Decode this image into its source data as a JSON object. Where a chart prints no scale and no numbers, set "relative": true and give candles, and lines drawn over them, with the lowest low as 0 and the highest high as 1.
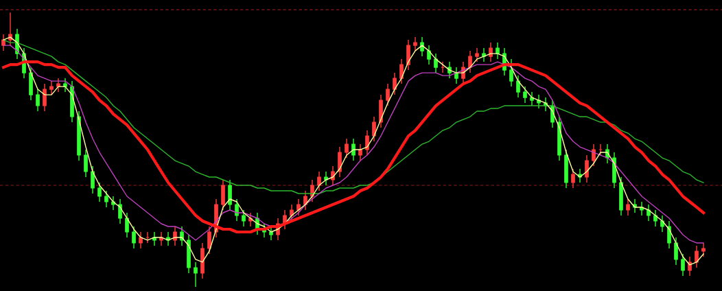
{
  "chart_data": {
    "type": "candlestick",
    "relative": true,
    "categories": [
      null,
      null,
      null,
      null,
      null,
      null,
      null,
      null,
      null,
      null,
      null,
      null,
      null,
      null,
      null,
      null,
      null,
      null,
      null,
      null,
      null,
      null,
      null,
      null,
      null,
      null,
      null,
      null,
      null,
      null,
      null,
      null,
      null,
      null,
      null,
      null,
      null,
      null,
      null,
      null,
      null,
      null,
      null,
      null,
      null,
      null,
      null,
      null,
      null,
      null,
      null,
      null,
      null,
      null,
      null,
      null,
      null,
      null,
      null,
      null,
      null,
      null,
      null,
      null,
      null,
      null,
      null,
      null,
      null,
      null,
      null,
      null,
      null,
      null,
      null,
      null,
      null,
      null,
      null,
      null,
      null,
      null,
      null,
      null,
      null,
      null,
      null,
      null,
      null,
      null,
      null,
      null,
      null,
      null,
      null,
      null,
      null,
      null,
      null,
      null,
      null,
      null,
      null
    ],
    "ohlc": [
      [
        0.88,
        0.92,
        0.86,
        0.9
      ],
      [
        0.9,
        1.0,
        0.88,
        0.92
      ],
      [
        0.92,
        0.94,
        0.83,
        0.85
      ],
      [
        0.85,
        0.87,
        0.76,
        0.78
      ],
      [
        0.78,
        0.8,
        0.68,
        0.7
      ],
      [
        0.7,
        0.72,
        0.64,
        0.66
      ],
      [
        0.66,
        0.74,
        0.64,
        0.72
      ],
      [
        0.72,
        0.75,
        0.7,
        0.73
      ],
      [
        0.73,
        0.76,
        0.71,
        0.74
      ],
      [
        0.74,
        0.76,
        0.71,
        0.73
      ],
      [
        0.73,
        0.75,
        0.6,
        0.62
      ],
      [
        0.62,
        0.64,
        0.46,
        0.48
      ],
      [
        0.48,
        0.5,
        0.4,
        0.42
      ],
      [
        0.42,
        0.44,
        0.34,
        0.36
      ],
      [
        0.36,
        0.38,
        0.31,
        0.33
      ],
      [
        0.33,
        0.35,
        0.29,
        0.31
      ],
      [
        0.31,
        0.33,
        0.28,
        0.3
      ],
      [
        0.3,
        0.32,
        0.23,
        0.25
      ],
      [
        0.25,
        0.27,
        0.18,
        0.2
      ],
      [
        0.2,
        0.22,
        0.14,
        0.16
      ],
      [
        0.16,
        0.2,
        0.14,
        0.18
      ],
      [
        0.18,
        0.2,
        0.16,
        0.18
      ],
      [
        0.18,
        0.2,
        0.15,
        0.17
      ],
      [
        0.17,
        0.2,
        0.15,
        0.18
      ],
      [
        0.18,
        0.2,
        0.15,
        0.17
      ],
      [
        0.17,
        0.22,
        0.15,
        0.2
      ],
      [
        0.2,
        0.22,
        0.15,
        0.17
      ],
      [
        0.17,
        0.19,
        0.05,
        0.07
      ],
      [
        0.07,
        0.09,
        0.0,
        0.05
      ],
      [
        0.05,
        0.16,
        0.03,
        0.14
      ],
      [
        0.14,
        0.22,
        0.12,
        0.2
      ],
      [
        0.2,
        0.32,
        0.18,
        0.3
      ],
      [
        0.3,
        0.39,
        0.28,
        0.37
      ],
      [
        0.37,
        0.39,
        0.28,
        0.3
      ],
      [
        0.3,
        0.32,
        0.24,
        0.26
      ],
      [
        0.26,
        0.28,
        0.22,
        0.24
      ],
      [
        0.24,
        0.27,
        0.22,
        0.25
      ],
      [
        0.25,
        0.27,
        0.19,
        0.21
      ],
      [
        0.21,
        0.23,
        0.18,
        0.2
      ],
      [
        0.2,
        0.22,
        0.17,
        0.19
      ],
      [
        0.19,
        0.25,
        0.17,
        0.23
      ],
      [
        0.23,
        0.28,
        0.21,
        0.26
      ],
      [
        0.26,
        0.3,
        0.24,
        0.28
      ],
      [
        0.28,
        0.32,
        0.26,
        0.3
      ],
      [
        0.3,
        0.35,
        0.28,
        0.33
      ],
      [
        0.33,
        0.39,
        0.31,
        0.37
      ],
      [
        0.37,
        0.42,
        0.35,
        0.4
      ],
      [
        0.4,
        0.42,
        0.37,
        0.39
      ],
      [
        0.39,
        0.44,
        0.37,
        0.42
      ],
      [
        0.42,
        0.51,
        0.4,
        0.49
      ],
      [
        0.49,
        0.54,
        0.47,
        0.52
      ],
      [
        0.52,
        0.54,
        0.46,
        0.48
      ],
      [
        0.48,
        0.52,
        0.46,
        0.5
      ],
      [
        0.5,
        0.57,
        0.48,
        0.55
      ],
      [
        0.55,
        0.62,
        0.53,
        0.6
      ],
      [
        0.6,
        0.7,
        0.58,
        0.68
      ],
      [
        0.68,
        0.74,
        0.66,
        0.72
      ],
      [
        0.72,
        0.78,
        0.7,
        0.76
      ],
      [
        0.76,
        0.83,
        0.74,
        0.81
      ],
      [
        0.81,
        0.9,
        0.79,
        0.88
      ],
      [
        0.88,
        0.91,
        0.86,
        0.89
      ],
      [
        0.89,
        0.91,
        0.84,
        0.86
      ],
      [
        0.86,
        0.88,
        0.81,
        0.83
      ],
      [
        0.83,
        0.85,
        0.78,
        0.8
      ],
      [
        0.8,
        0.82,
        0.78,
        0.8
      ],
      [
        0.8,
        0.82,
        0.76,
        0.78
      ],
      [
        0.78,
        0.8,
        0.74,
        0.76
      ],
      [
        0.76,
        0.82,
        0.74,
        0.8
      ],
      [
        0.8,
        0.86,
        0.78,
        0.84
      ],
      [
        0.84,
        0.87,
        0.82,
        0.85
      ],
      [
        0.85,
        0.87,
        0.82,
        0.84
      ],
      [
        0.84,
        0.89,
        0.82,
        0.87
      ],
      [
        0.87,
        0.89,
        0.83,
        0.85
      ],
      [
        0.85,
        0.87,
        0.77,
        0.79
      ],
      [
        0.79,
        0.83,
        0.73,
        0.75
      ],
      [
        0.75,
        0.77,
        0.69,
        0.71
      ],
      [
        0.71,
        0.73,
        0.67,
        0.69
      ],
      [
        0.69,
        0.71,
        0.66,
        0.68
      ],
      [
        0.68,
        0.7,
        0.65,
        0.67
      ],
      [
        0.67,
        0.69,
        0.64,
        0.66
      ],
      [
        0.66,
        0.68,
        0.58,
        0.6
      ],
      [
        0.6,
        0.62,
        0.46,
        0.48
      ],
      [
        0.48,
        0.5,
        0.36,
        0.38
      ],
      [
        0.38,
        0.43,
        0.36,
        0.41
      ],
      [
        0.41,
        0.43,
        0.38,
        0.4
      ],
      [
        0.4,
        0.48,
        0.38,
        0.46
      ],
      [
        0.46,
        0.52,
        0.44,
        0.5
      ],
      [
        0.5,
        0.52,
        0.48,
        0.5
      ],
      [
        0.5,
        0.52,
        0.45,
        0.47
      ],
      [
        0.47,
        0.49,
        0.36,
        0.38
      ],
      [
        0.38,
        0.4,
        0.26,
        0.28
      ],
      [
        0.28,
        0.32,
        0.26,
        0.3
      ],
      [
        0.3,
        0.32,
        0.27,
        0.29
      ],
      [
        0.29,
        0.31,
        0.26,
        0.28
      ],
      [
        0.28,
        0.3,
        0.24,
        0.26
      ],
      [
        0.26,
        0.28,
        0.22,
        0.24
      ],
      [
        0.24,
        0.26,
        0.2,
        0.22
      ],
      [
        0.22,
        0.24,
        0.14,
        0.16
      ],
      [
        0.16,
        0.18,
        0.08,
        0.1
      ],
      [
        0.1,
        0.12,
        0.04,
        0.06
      ],
      [
        0.06,
        0.11,
        0.04,
        0.09
      ],
      [
        0.09,
        0.15,
        0.07,
        0.13
      ],
      [
        0.13,
        0.16,
        0.11,
        0.14
      ]
    ],
    "colors": [
      "#ff3c3c",
      "#ff3c3c",
      "#33ff33",
      "#33ff33",
      "#33ff33",
      "#33ff33",
      "#ff3c3c",
      "#ff3c3c",
      "#ff3c3c",
      "#33ff33",
      "#33ff33",
      "#33ff33",
      "#33ff33",
      "#33ff33",
      "#33ff33",
      "#33ff33",
      "#33ff33",
      "#33ff33",
      "#33ff33",
      "#33ff33",
      "#ff3c3c",
      "#ff3c3c",
      "#33ff33",
      "#ff3c3c",
      "#33ff33",
      "#ff3c3c",
      "#33ff33",
      "#33ff33",
      "#33ff33",
      "#ff3c3c",
      "#ff3c3c",
      "#ff3c3c",
      "#ff3c3c",
      "#33ff33",
      "#33ff33",
      "#33ff33",
      "#ff3c3c",
      "#33ff33",
      "#33ff33",
      "#33ff33",
      "#ff3c3c",
      "#ff3c3c",
      "#ff3c3c",
      "#ff3c3c",
      "#ff3c3c",
      "#ff3c3c",
      "#ff3c3c",
      "#33ff33",
      "#ff3c3c",
      "#ff3c3c",
      "#ff3c3c",
      "#33ff33",
      "#ff3c3c",
      "#ff3c3c",
      "#ff3c3c",
      "#ff3c3c",
      "#ff3c3c",
      "#ff3c3c",
      "#ff3c3c",
      "#ff3c3c",
      "#ff3c3c",
      "#33ff33",
      "#33ff33",
      "#33ff33",
      "#ff3c3c",
      "#33ff33",
      "#33ff33",
      "#ff3c3c",
      "#ff3c3c",
      "#ff3c3c",
      "#33ff33",
      "#ff3c3c",
      "#33ff33",
      "#33ff33",
      "#33ff33",
      "#33ff33",
      "#33ff33",
      "#33ff33",
      "#33ff33",
      "#33ff33",
      "#33ff33",
      "#33ff33",
      "#33ff33",
      "#ff3c3c",
      "#33ff33",
      "#ff3c3c",
      "#ff3c3c",
      "#ff3c3c",
      "#33ff33",
      "#33ff33",
      "#33ff33",
      "#ff3c3c",
      "#33ff33",
      "#33ff33",
      "#33ff33",
      "#33ff33",
      "#33ff33",
      "#33ff33",
      "#33ff33",
      "#33ff33",
      "#ff3c3c",
      "#ff3c3c",
      "#ff3c3c"
    ],
    "series": [
      {
        "type": "line",
        "color": "#2eb82e",
        "values": [
          0.9,
          0.89,
          0.89,
          0.88,
          0.87,
          0.86,
          0.85,
          0.84,
          0.82,
          0.81,
          0.79,
          0.77,
          0.75,
          0.73,
          0.71,
          0.69,
          0.66,
          0.64,
          0.61,
          0.58,
          0.56,
          0.54,
          0.52,
          0.5,
          0.48,
          0.46,
          0.45,
          0.44,
          0.42,
          0.41,
          0.4,
          0.4,
          0.39,
          0.38,
          0.37,
          0.37,
          0.37,
          0.36,
          0.36,
          0.35,
          0.35,
          0.35,
          0.35,
          0.34,
          0.34,
          0.34,
          0.34,
          0.35,
          0.35,
          0.36,
          0.36,
          0.36,
          0.37,
          0.37,
          0.38,
          0.4,
          0.42,
          0.44,
          0.46,
          0.48,
          0.5,
          0.52,
          0.53,
          0.55,
          0.57,
          0.58,
          0.6,
          0.61,
          0.62,
          0.64,
          0.64,
          0.65,
          0.65,
          0.66,
          0.66,
          0.66,
          0.66,
          0.66,
          0.66,
          0.66,
          0.66,
          0.65,
          0.64,
          0.63,
          0.62,
          0.62,
          0.61,
          0.6,
          0.6,
          0.59,
          0.57,
          0.56,
          0.54,
          0.53,
          0.51,
          0.49,
          0.47,
          0.46,
          0.44,
          0.42,
          0.41,
          0.39,
          0.38
        ]
      },
      {
        "type": "line",
        "color": "#c040c0",
        "values": [
          0.88,
          0.88,
          0.86,
          0.83,
          0.8,
          0.77,
          0.76,
          0.75,
          0.75,
          0.75,
          0.73,
          0.67,
          0.6,
          0.54,
          0.49,
          0.45,
          0.41,
          0.37,
          0.33,
          0.31,
          0.29,
          0.27,
          0.25,
          0.23,
          0.22,
          0.22,
          0.21,
          0.19,
          0.17,
          0.19,
          0.21,
          0.24,
          0.27,
          0.28,
          0.27,
          0.27,
          0.26,
          0.25,
          0.23,
          0.22,
          0.22,
          0.23,
          0.25,
          0.27,
          0.3,
          0.32,
          0.34,
          0.36,
          0.37,
          0.38,
          0.4,
          0.43,
          0.46,
          0.48,
          0.51,
          0.55,
          0.6,
          0.65,
          0.7,
          0.75,
          0.77,
          0.78,
          0.78,
          0.78,
          0.77,
          0.77,
          0.78,
          0.79,
          0.8,
          0.81,
          0.81,
          0.81,
          0.82,
          0.81,
          0.8,
          0.78,
          0.76,
          0.75,
          0.73,
          0.72,
          0.68,
          0.62,
          0.56,
          0.53,
          0.51,
          0.5,
          0.49,
          0.48,
          0.47,
          0.45,
          0.42,
          0.39,
          0.36,
          0.33,
          0.31,
          0.29,
          0.27,
          0.25,
          0.22,
          0.19,
          0.17,
          0.16,
          0.16
        ]
      },
      {
        "type": "line",
        "color": "#ffffa0",
        "values": [
          0.9,
          0.91,
          0.89,
          0.85,
          0.78,
          0.72,
          0.7,
          0.7,
          0.73,
          0.73,
          0.7,
          0.61,
          0.51,
          0.42,
          0.37,
          0.34,
          0.31,
          0.29,
          0.25,
          0.21,
          0.18,
          0.17,
          0.18,
          0.18,
          0.17,
          0.18,
          0.18,
          0.15,
          0.1,
          0.09,
          0.13,
          0.21,
          0.29,
          0.32,
          0.31,
          0.27,
          0.25,
          0.23,
          0.22,
          0.2,
          0.21,
          0.23,
          0.26,
          0.28,
          0.3,
          0.33,
          0.37,
          0.39,
          0.4,
          0.43,
          0.48,
          0.5,
          0.5,
          0.51,
          0.55,
          0.61,
          0.67,
          0.72,
          0.76,
          0.82,
          0.86,
          0.88,
          0.86,
          0.83,
          0.81,
          0.79,
          0.78,
          0.78,
          0.8,
          0.83,
          0.84,
          0.85,
          0.85,
          0.84,
          0.8,
          0.75,
          0.72,
          0.69,
          0.68,
          0.67,
          0.64,
          0.58,
          0.49,
          0.42,
          0.4,
          0.42,
          0.45,
          0.49,
          0.49,
          0.45,
          0.38,
          0.32,
          0.29,
          0.29,
          0.28,
          0.26,
          0.24,
          0.21,
          0.16,
          0.11,
          0.08,
          0.09,
          0.12
        ]
      },
      {
        "type": "line",
        "color": "#ff1a1a",
        "values": [
          0.8,
          0.81,
          0.81,
          0.82,
          0.82,
          0.82,
          0.81,
          0.81,
          0.8,
          0.8,
          0.77,
          0.75,
          0.73,
          0.71,
          0.68,
          0.66,
          0.63,
          0.61,
          0.59,
          0.56,
          0.53,
          0.5,
          0.46,
          0.42,
          0.38,
          0.35,
          0.32,
          0.29,
          0.26,
          0.24,
          0.23,
          0.22,
          0.21,
          0.21,
          0.2,
          0.2,
          0.2,
          0.21,
          0.21,
          0.22,
          0.22,
          0.23,
          0.24,
          0.25,
          0.26,
          0.27,
          0.28,
          0.29,
          0.3,
          0.31,
          0.32,
          0.33,
          0.35,
          0.36,
          0.38,
          0.4,
          0.43,
          0.47,
          0.51,
          0.55,
          0.57,
          0.6,
          0.63,
          0.66,
          0.68,
          0.7,
          0.72,
          0.74,
          0.75,
          0.77,
          0.78,
          0.79,
          0.8,
          0.81,
          0.81,
          0.81,
          0.8,
          0.79,
          0.78,
          0.77,
          0.75,
          0.73,
          0.71,
          0.69,
          0.67,
          0.66,
          0.64,
          0.62,
          0.6,
          0.58,
          0.56,
          0.54,
          0.51,
          0.49,
          0.46,
          0.44,
          0.41,
          0.39,
          0.36,
          0.33,
          0.31,
          0.29,
          0.27
        ]
      }
    ],
    "ref_lines": [
      {
        "axis": "y",
        "value": 1.01,
        "color": "#8b1a1a",
        "line_style": "dashed"
      },
      {
        "axis": "y",
        "value": 0.37,
        "color": "#8b1a1a",
        "line_style": "dashed"
      }
    ]
  }
}
